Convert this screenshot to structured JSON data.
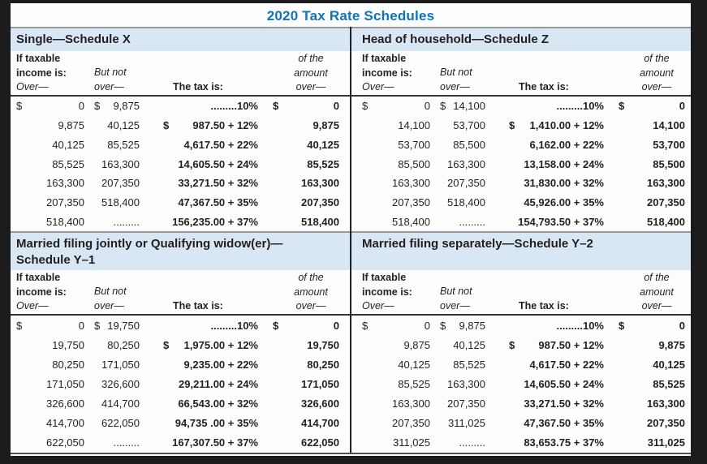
{
  "title": "2020 Tax Rate Schedules",
  "colors": {
    "title_blue": "#0d73bd",
    "band_blue": "#d9e7f4",
    "text": "#231f20",
    "frame": "#1c1c1e"
  },
  "column_headers": {
    "if_taxable": "If taxable",
    "income_is": "income is:",
    "over": "Over—",
    "but_not": "But not",
    "but_not_over": "over—",
    "tax_is": "The tax is:",
    "of_the": "of the",
    "amount": "amount",
    "amount_over": "over—"
  },
  "schedules": [
    {
      "name": "single",
      "title_line1": "Single—Schedule X",
      "title_line2": "",
      "rows": [
        {
          "over_sign": "$",
          "over": "0",
          "butnot_sign": "$",
          "butnot": "9,875",
          "tax_sign": "",
          "tax": ".........10%",
          "amount_sign": "$",
          "amount": "0"
        },
        {
          "over_sign": "",
          "over": "9,875",
          "butnot_sign": "",
          "butnot": "40,125",
          "tax_sign": "$",
          "tax": "987.50 + 12%",
          "amount_sign": "",
          "amount": "9,875"
        },
        {
          "over_sign": "",
          "over": "40,125",
          "butnot_sign": "",
          "butnot": "85,525",
          "tax_sign": "",
          "tax": "4,617.50 + 22%",
          "amount_sign": "",
          "amount": "40,125"
        },
        {
          "over_sign": "",
          "over": "85,525",
          "butnot_sign": "",
          "butnot": "163,300",
          "tax_sign": "",
          "tax": "14,605.50 + 24%",
          "amount_sign": "",
          "amount": "85,525"
        },
        {
          "over_sign": "",
          "over": "163,300",
          "butnot_sign": "",
          "butnot": "207,350",
          "tax_sign": "",
          "tax": "33,271.50 + 32%",
          "amount_sign": "",
          "amount": "163,300"
        },
        {
          "over_sign": "",
          "over": "207,350",
          "butnot_sign": "",
          "butnot": "518,400",
          "tax_sign": "",
          "tax": "47,367.50 + 35%",
          "amount_sign": "",
          "amount": "207,350"
        },
        {
          "over_sign": "",
          "over": "518,400",
          "butnot_sign": "",
          "butnot": ".........",
          "tax_sign": "",
          "tax": "156,235.00 + 37%",
          "amount_sign": "",
          "amount": "518,400"
        }
      ]
    },
    {
      "name": "head-of-household",
      "title_line1": "Head of household—Schedule Z",
      "title_line2": "",
      "rows": [
        {
          "over_sign": "$",
          "over": "0",
          "butnot_sign": "$",
          "butnot": "14,100",
          "tax_sign": "",
          "tax": ".........10%",
          "amount_sign": "$",
          "amount": "0"
        },
        {
          "over_sign": "",
          "over": "14,100",
          "butnot_sign": "",
          "butnot": "53,700",
          "tax_sign": "$",
          "tax": "1,410.00 + 12%",
          "amount_sign": "",
          "amount": "14,100"
        },
        {
          "over_sign": "",
          "over": "53,700",
          "butnot_sign": "",
          "butnot": "85,500",
          "tax_sign": "",
          "tax": "6,162.00 + 22%",
          "amount_sign": "",
          "amount": "53,700"
        },
        {
          "over_sign": "",
          "over": "85,500",
          "butnot_sign": "",
          "butnot": "163,300",
          "tax_sign": "",
          "tax": "13,158.00 + 24%",
          "amount_sign": "",
          "amount": "85,500"
        },
        {
          "over_sign": "",
          "over": "163,300",
          "butnot_sign": "",
          "butnot": "207,350",
          "tax_sign": "",
          "tax": "31,830.00 + 32%",
          "amount_sign": "",
          "amount": "163,300"
        },
        {
          "over_sign": "",
          "over": "207,350",
          "butnot_sign": "",
          "butnot": "518,400",
          "tax_sign": "",
          "tax": "45,926.00 + 35%",
          "amount_sign": "",
          "amount": "207,350"
        },
        {
          "over_sign": "",
          "over": "518,400",
          "butnot_sign": "",
          "butnot": ".........",
          "tax_sign": "",
          "tax": "154,793.50 + 37%",
          "amount_sign": "",
          "amount": "518,400"
        }
      ]
    },
    {
      "name": "married-filing-jointly",
      "title_line1": "Married filing jointly or Qualifying widow(er)—",
      "title_line2": "Schedule Y–1",
      "rows": [
        {
          "over_sign": "$",
          "over": "0",
          "butnot_sign": "$",
          "butnot": "19,750",
          "tax_sign": "",
          "tax": ".........10%",
          "amount_sign": "$",
          "amount": "0"
        },
        {
          "over_sign": "",
          "over": "19,750",
          "butnot_sign": "",
          "butnot": "80,250",
          "tax_sign": "$",
          "tax": "1,975.00 + 12%",
          "amount_sign": "",
          "amount": "19,750"
        },
        {
          "over_sign": "",
          "over": "80,250",
          "butnot_sign": "",
          "butnot": "171,050",
          "tax_sign": "",
          "tax": "9,235.00 + 22%",
          "amount_sign": "",
          "amount": "80,250"
        },
        {
          "over_sign": "",
          "over": "171,050",
          "butnot_sign": "",
          "butnot": "326,600",
          "tax_sign": "",
          "tax": "29,211.00 + 24%",
          "amount_sign": "",
          "amount": "171,050"
        },
        {
          "over_sign": "",
          "over": "326,600",
          "butnot_sign": "",
          "butnot": "414,700",
          "tax_sign": "",
          "tax": "66,543.00 + 32%",
          "amount_sign": "",
          "amount": "326,600"
        },
        {
          "over_sign": "",
          "over": "414,700",
          "butnot_sign": "",
          "butnot": "622,050",
          "tax_sign": "",
          "tax": "94,735 .00 + 35%",
          "amount_sign": "",
          "amount": "414,700"
        },
        {
          "over_sign": "",
          "over": "622,050",
          "butnot_sign": "",
          "butnot": ".........",
          "tax_sign": "",
          "tax": "167,307.50 + 37%",
          "amount_sign": "",
          "amount": "622,050"
        }
      ]
    },
    {
      "name": "married-filing-separately",
      "title_line1": "Married filing separately—Schedule Y–2",
      "title_line2": "",
      "rows": [
        {
          "over_sign": "$",
          "over": "0",
          "butnot_sign": "$",
          "butnot": "9,875",
          "tax_sign": "",
          "tax": ".........10%",
          "amount_sign": "$",
          "amount": "0"
        },
        {
          "over_sign": "",
          "over": "9,875",
          "butnot_sign": "",
          "butnot": "40,125",
          "tax_sign": "$",
          "tax": "987.50 + 12%",
          "amount_sign": "",
          "amount": "9,875"
        },
        {
          "over_sign": "",
          "over": "40,125",
          "butnot_sign": "",
          "butnot": "85,525",
          "tax_sign": "",
          "tax": "4,617.50 + 22%",
          "amount_sign": "",
          "amount": "40,125"
        },
        {
          "over_sign": "",
          "over": "85,525",
          "butnot_sign": "",
          "butnot": "163,300",
          "tax_sign": "",
          "tax": "14,605.50 + 24%",
          "amount_sign": "",
          "amount": "85,525"
        },
        {
          "over_sign": "",
          "over": "163,300",
          "butnot_sign": "",
          "butnot": "207,350",
          "tax_sign": "",
          "tax": "33,271.50 + 32%",
          "amount_sign": "",
          "amount": "163,300"
        },
        {
          "over_sign": "",
          "over": "207,350",
          "butnot_sign": "",
          "butnot": "311,025",
          "tax_sign": "",
          "tax": "47,367.50 + 35%",
          "amount_sign": "",
          "amount": "207,350"
        },
        {
          "over_sign": "",
          "over": "311,025",
          "butnot_sign": "",
          "butnot": ".........",
          "tax_sign": "",
          "tax": "83,653.75 + 37%",
          "amount_sign": "",
          "amount": "311,025"
        }
      ]
    }
  ]
}
